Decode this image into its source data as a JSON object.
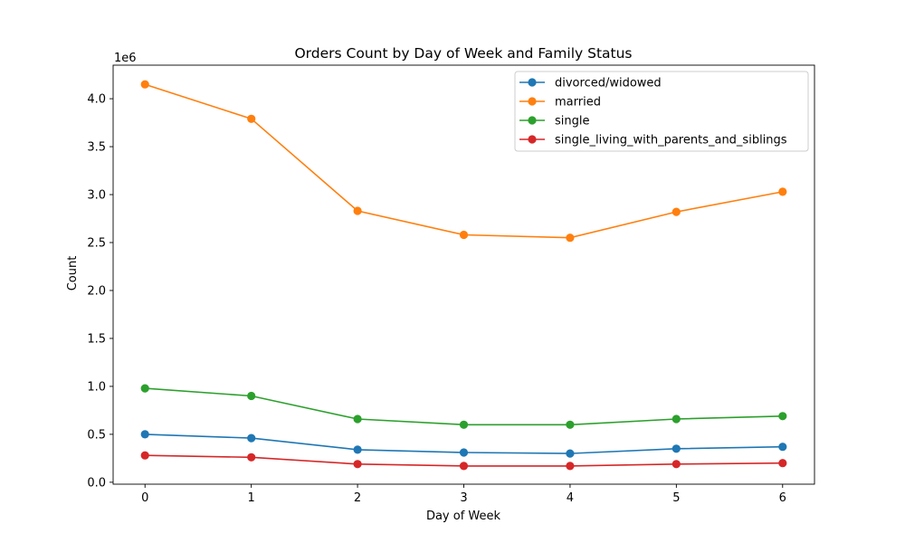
{
  "chart_data": {
    "type": "line",
    "title": "Orders Count by Day of Week and Family Status",
    "xlabel": "Day of Week",
    "ylabel": "Count",
    "y_scale_note": "1e6",
    "x": [
      0,
      1,
      2,
      3,
      4,
      5,
      6
    ],
    "xlim": [
      -0.3,
      6.3
    ],
    "ylim": [
      -0.02,
      4.35
    ],
    "y_ticks": [
      "0.0",
      "0.5",
      "1.0",
      "1.5",
      "2.0",
      "2.5",
      "3.0",
      "3.5",
      "4.0"
    ],
    "x_ticks": [
      "0",
      "1",
      "2",
      "3",
      "4",
      "5",
      "6"
    ],
    "legend_position": "top-right",
    "grid": false,
    "series": [
      {
        "name": "divorced/widowed",
        "color": "#1f77b4",
        "values": [
          0.5,
          0.46,
          0.34,
          0.31,
          0.3,
          0.35,
          0.37
        ]
      },
      {
        "name": "married",
        "color": "#ff7f0e",
        "values": [
          4.15,
          3.79,
          2.83,
          2.58,
          2.55,
          2.82,
          3.03
        ]
      },
      {
        "name": "single",
        "color": "#2ca02c",
        "values": [
          0.98,
          0.9,
          0.66,
          0.6,
          0.6,
          0.66,
          0.69
        ]
      },
      {
        "name": "single_living_with_parents_and_siblings",
        "color": "#d62728",
        "values": [
          0.28,
          0.26,
          0.19,
          0.17,
          0.17,
          0.19,
          0.2
        ]
      }
    ]
  }
}
